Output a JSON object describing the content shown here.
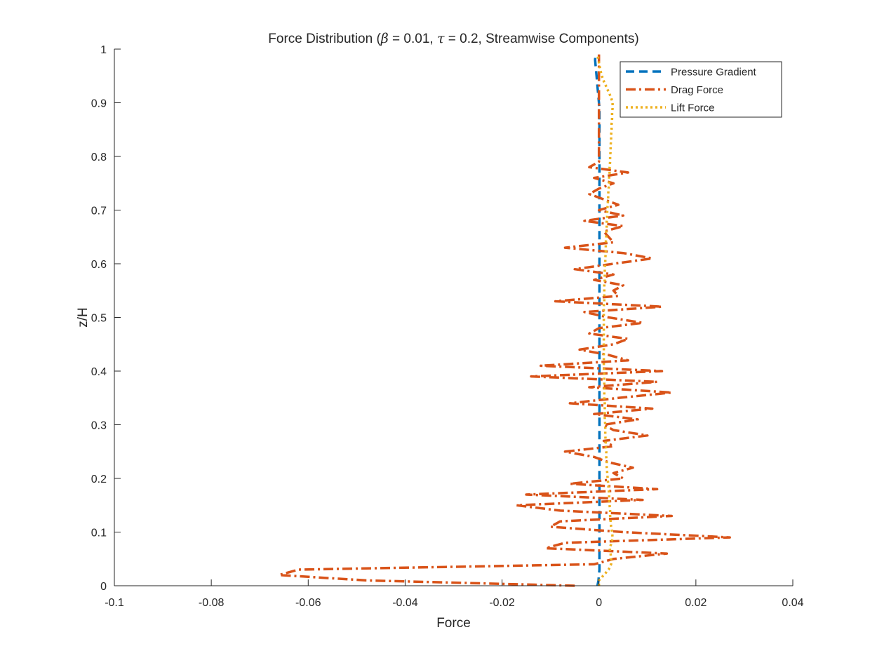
{
  "chart_data": {
    "type": "line",
    "title_parts": {
      "prefix": "Force Distribution (",
      "beta_symbol": "β",
      "beta_eq": " = 0.01, ",
      "tau_symbol": "τ",
      "tau_eq": " = 0.2, Streamwise Components)"
    },
    "xlabel": "Force",
    "ylabel": "z/H",
    "xlim": [
      -0.1,
      0.04
    ],
    "ylim": [
      0,
      1
    ],
    "xticks": [
      "-0.1",
      "-0.08",
      "-0.06",
      "-0.04",
      "-0.02",
      "0",
      "0.02",
      "0.04"
    ],
    "yticks": [
      "0",
      "0.1",
      "0.2",
      "0.3",
      "0.4",
      "0.5",
      "0.6",
      "0.7",
      "0.8",
      "0.9",
      "1"
    ],
    "grid": false,
    "legend_position": "top-right",
    "z": [
      0.0,
      0.01,
      0.02,
      0.03,
      0.04,
      0.05,
      0.06,
      0.07,
      0.08,
      0.09,
      0.1,
      0.11,
      0.12,
      0.13,
      0.14,
      0.15,
      0.16,
      0.17,
      0.18,
      0.19,
      0.2,
      0.21,
      0.22,
      0.23,
      0.24,
      0.25,
      0.26,
      0.27,
      0.28,
      0.29,
      0.3,
      0.31,
      0.32,
      0.33,
      0.34,
      0.35,
      0.36,
      0.37,
      0.38,
      0.39,
      0.4,
      0.41,
      0.42,
      0.43,
      0.44,
      0.45,
      0.46,
      0.47,
      0.48,
      0.49,
      0.5,
      0.51,
      0.52,
      0.53,
      0.54,
      0.55,
      0.56,
      0.57,
      0.58,
      0.59,
      0.6,
      0.61,
      0.62,
      0.63,
      0.64,
      0.65,
      0.66,
      0.67,
      0.68,
      0.69,
      0.7,
      0.71,
      0.72,
      0.73,
      0.74,
      0.75,
      0.76,
      0.77,
      0.78,
      0.79,
      0.8,
      0.81,
      0.82,
      0.83,
      0.84,
      0.85,
      0.86,
      0.87,
      0.88,
      0.89,
      0.9,
      0.91,
      0.92,
      0.93,
      0.94,
      0.95,
      0.96,
      0.97,
      0.98,
      0.99
    ],
    "series": [
      {
        "name": "Pressure Gradient",
        "color": "#0072BD",
        "style": "dashed",
        "values": [
          -0.0003,
          -0.0001,
          0.0,
          0.0001,
          0.0001,
          0.0001,
          0.0001,
          0.0001,
          0.0001,
          0.0001,
          0.0001,
          0.0001,
          0.0001,
          0.0001,
          0.0001,
          0.0001,
          0.0001,
          0.0001,
          0.0001,
          0.0001,
          0.0001,
          0.0001,
          0.0001,
          0.0001,
          0.0001,
          0.0001,
          0.0001,
          0.0001,
          0.0001,
          0.0001,
          0.0001,
          0.0001,
          0.0001,
          0.0001,
          0.0001,
          0.0001,
          0.0001,
          0.0001,
          0.0001,
          0.0001,
          0.0001,
          0.0001,
          0.0001,
          0.0001,
          0.0001,
          0.0001,
          0.0001,
          0.0001,
          0.0001,
          0.0001,
          0.0001,
          0.0001,
          0.0001,
          0.0001,
          0.0001,
          0.0001,
          0.0001,
          0.0001,
          0.0001,
          0.0001,
          0.0001,
          0.0001,
          0.0001,
          0.0001,
          0.0001,
          0.0001,
          0.0001,
          0.0001,
          0.0001,
          0.0001,
          0.0001,
          0.0001,
          0.0001,
          0.0001,
          0.0001,
          0.0001,
          0.0001,
          0.0001,
          0.0001,
          0.0001,
          0.0001,
          0.0001,
          0.0001,
          0.0001,
          0.0001,
          0.0001,
          0.0001,
          0.0001,
          0.0001,
          0.0001,
          0.0,
          -0.0001,
          -0.0002,
          -0.0003,
          -0.0004,
          -0.0005,
          -0.0006,
          -0.0007,
          -0.0008,
          -0.0007
        ]
      },
      {
        "name": "Drag Force",
        "color": "#D95319",
        "style": "dashdot",
        "values": [
          -0.005,
          -0.048,
          -0.066,
          -0.062,
          -0.001,
          0.003,
          0.014,
          -0.011,
          -0.007,
          0.027,
          0.005,
          -0.01,
          -0.008,
          0.015,
          -0.008,
          -0.017,
          0.009,
          -0.015,
          0.012,
          -0.006,
          0.005,
          0.003,
          0.007,
          0.002,
          -0.001,
          -0.007,
          0.003,
          0.001,
          0.01,
          0.003,
          0.001,
          0.008,
          -0.001,
          0.011,
          -0.006,
          0.004,
          0.015,
          -0.002,
          0.012,
          -0.014,
          0.013,
          -0.012,
          0.006,
          0.002,
          -0.004,
          0.003,
          0.006,
          -0.002,
          0.0,
          0.009,
          0.002,
          -0.003,
          0.013,
          -0.009,
          0.004,
          0.003,
          0.005,
          -0.001,
          0.003,
          -0.005,
          0.003,
          0.011,
          0.005,
          -0.007,
          0.003,
          0.002,
          0.001,
          0.005,
          -0.003,
          0.005,
          0.0,
          0.004,
          0.001,
          -0.002,
          0.0,
          0.003,
          -0.001,
          0.006,
          -0.002,
          0.0,
          0.0,
          0.0,
          0.0,
          0.0,
          0.0,
          0.0,
          0.0,
          0.0,
          0.0,
          0.0,
          0.0,
          0.0,
          0.0,
          0.0,
          0.0,
          0.0,
          0.0,
          0.0,
          0.0,
          0.0
        ]
      },
      {
        "name": "Lift Force",
        "color": "#EDB120",
        "style": "dotted",
        "values": [
          0.0,
          0.0,
          0.001,
          0.002,
          0.0025,
          0.0025,
          0.0024,
          0.0022,
          0.0026,
          0.0028,
          0.0027,
          0.0025,
          0.0024,
          0.0023,
          0.0023,
          0.0022,
          0.0021,
          0.0021,
          0.002,
          0.0019,
          0.0018,
          0.0017,
          0.0016,
          0.0016,
          0.0015,
          0.0015,
          0.0014,
          0.0014,
          0.0013,
          0.0013,
          0.0013,
          0.0012,
          0.0012,
          0.0012,
          0.0012,
          0.0011,
          0.0011,
          0.0011,
          0.0011,
          0.0011,
          0.0011,
          0.001,
          0.001,
          0.001,
          0.001,
          0.001,
          0.001,
          0.001,
          0.001,
          0.001,
          0.001,
          0.001,
          0.001,
          0.0011,
          0.0011,
          0.0011,
          0.0011,
          0.0012,
          0.0012,
          0.0012,
          0.0013,
          0.0013,
          0.0014,
          0.0014,
          0.0014,
          0.0015,
          0.0015,
          0.0016,
          0.0016,
          0.0017,
          0.0017,
          0.0018,
          0.0019,
          0.0019,
          0.002,
          0.0021,
          0.0021,
          0.0022,
          0.0022,
          0.0023,
          0.0023,
          0.0024,
          0.0024,
          0.0025,
          0.0025,
          0.0026,
          0.0026,
          0.0027,
          0.0027,
          0.0028,
          0.0028,
          0.0025,
          0.002,
          0.0015,
          0.001,
          0.0006,
          0.0003,
          0.0001,
          -0.0001,
          -0.0003
        ]
      }
    ]
  }
}
